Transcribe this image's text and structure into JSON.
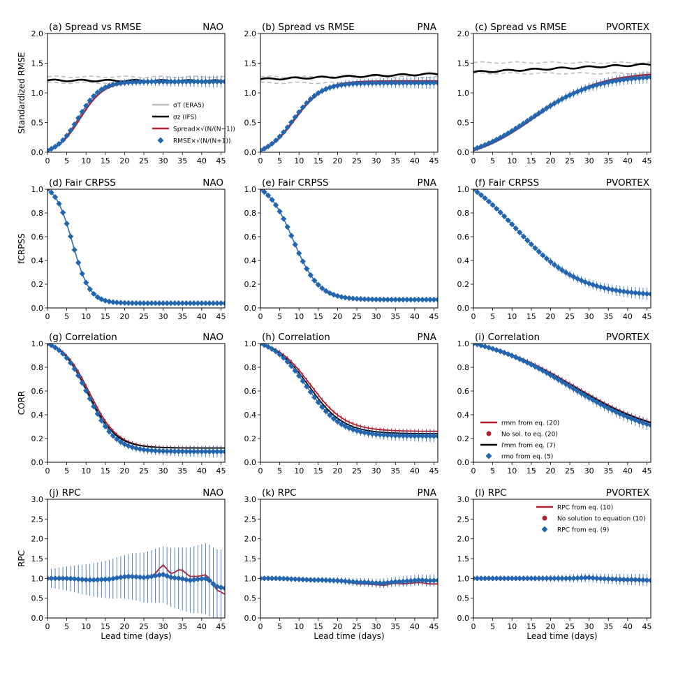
{
  "figure": {
    "xlabel": "Lead time (days)",
    "ylabels": [
      "Standardized RMSE",
      "fCRPSS",
      "CORR",
      "RPC"
    ],
    "regions": [
      "NAO",
      "PNA",
      "PVORTEX"
    ],
    "xticks": [
      "0",
      "5",
      "10",
      "15",
      "20",
      "25",
      "30",
      "35",
      "40",
      "45"
    ],
    "colors": {
      "red": "#b41f2d",
      "blue": "#2266b0",
      "black": "#000000",
      "gray": "#bdbdbd"
    }
  },
  "chart_data": [
    {
      "type": "line",
      "id": "a",
      "title": "(a) Spread vs RMSE",
      "region": "NAO",
      "ylim": [
        0,
        2.0
      ],
      "yticks": [
        "0.0",
        "0.5",
        "1.0",
        "1.5",
        "2.0"
      ],
      "xlim": [
        0,
        46
      ],
      "series": [
        {
          "name": "σ_T (ERA5)",
          "kind": "band",
          "color": "gray",
          "mean": 1.22,
          "halfwidth": 0.05
        },
        {
          "name": "σ_z (IFS)",
          "kind": "flat",
          "color": "black",
          "start": 1.21,
          "end": 1.2
        },
        {
          "name": "Spread×√(N/(N−1))",
          "kind": "sigmoid",
          "color": "red",
          "start": 0.03,
          "end": 1.19,
          "t0": 8.5,
          "k": 0.33
        },
        {
          "name": "RMSE×√(N/(N+1))",
          "kind": "sigmoid",
          "color": "blue",
          "marker": "diamond",
          "start": 0.03,
          "end": 1.19,
          "t0": 8.0,
          "k": 0.35
        }
      ],
      "legend": {
        "position": "center-right",
        "entries": [
          {
            "symbol": "line-gray",
            "label": "σT (ERA5)"
          },
          {
            "symbol": "line-black",
            "label": "σz (IFS)"
          },
          {
            "symbol": "line-red",
            "label": "Spread×√(N/(N−1))"
          },
          {
            "symbol": "diamond-blue",
            "label": "RMSE×√(N/(N+1))"
          }
        ]
      }
    },
    {
      "type": "line",
      "id": "b",
      "title": "(b) Spread vs RMSE",
      "region": "PNA",
      "ylim": [
        0,
        2.0
      ],
      "yticks": [
        "0.0",
        "0.5",
        "1.0",
        "1.5",
        "2.0"
      ],
      "xlim": [
        0,
        46
      ],
      "series": [
        {
          "name": "σ_T (ERA5)",
          "kind": "band",
          "color": "gray",
          "mean": 1.22,
          "halfwidth": 0.05
        },
        {
          "name": "σ_z (IFS)",
          "kind": "flat",
          "color": "black",
          "start": 1.23,
          "end": 1.32
        },
        {
          "name": "Spread",
          "kind": "sigmoid",
          "color": "red",
          "start": 0.03,
          "end": 1.2,
          "t0": 9.0,
          "k": 0.27
        },
        {
          "name": "RMSE",
          "kind": "sigmoid",
          "color": "blue",
          "marker": "diamond",
          "start": 0.03,
          "end": 1.17,
          "t0": 8.5,
          "k": 0.28
        }
      ]
    },
    {
      "type": "line",
      "id": "c",
      "title": "(c) Spread vs RMSE",
      "region": "PVORTEX",
      "ylim": [
        0,
        2.0
      ],
      "yticks": [
        "0.0",
        "0.5",
        "1.0",
        "1.5",
        "2.0"
      ],
      "xlim": [
        0,
        46
      ],
      "series": [
        {
          "name": "σ_T (ERA5)",
          "kind": "band",
          "color": "gray",
          "mean": 1.42,
          "halfwidth": 0.09
        },
        {
          "name": "σ_z (IFS)",
          "kind": "flat",
          "color": "black",
          "start": 1.35,
          "end": 1.48
        },
        {
          "name": "Spread",
          "kind": "sigmoid",
          "color": "red",
          "start": 0.03,
          "end": 1.35,
          "t0": 16.0,
          "k": 0.12
        },
        {
          "name": "RMSE",
          "kind": "sigmoid",
          "color": "blue",
          "marker": "diamond",
          "start": 0.05,
          "end": 1.3,
          "t0": 15.0,
          "k": 0.12
        }
      ]
    },
    {
      "type": "scatter",
      "id": "d",
      "title": "(d) Fair CRPSS",
      "region": "NAO",
      "ylim": [
        0,
        1.0
      ],
      "yticks": [
        "0.0",
        "0.2",
        "0.4",
        "0.6",
        "0.8",
        "1.0"
      ],
      "xlim": [
        0,
        46
      ],
      "series": [
        {
          "name": "fCRPSS",
          "kind": "sigmoid",
          "color": "blue",
          "marker": "diamond",
          "start": 1.0,
          "end": 0.04,
          "t0": 6.5,
          "k": 0.45
        }
      ]
    },
    {
      "type": "scatter",
      "id": "e",
      "title": "(e) Fair CRPSS",
      "region": "PNA",
      "ylim": [
        0,
        1.0
      ],
      "yticks": [
        "0.0",
        "0.2",
        "0.4",
        "0.6",
        "0.8",
        "1.0"
      ],
      "xlim": [
        0,
        46
      ],
      "series": [
        {
          "name": "fCRPSS",
          "kind": "sigmoid",
          "color": "blue",
          "marker": "diamond",
          "start": 1.0,
          "end": 0.07,
          "t0": 8.5,
          "k": 0.3
        }
      ]
    },
    {
      "type": "scatter",
      "id": "f",
      "title": "(f) Fair CRPSS",
      "region": "PVORTEX",
      "ylim": [
        0,
        1.0
      ],
      "yticks": [
        "0.0",
        "0.2",
        "0.4",
        "0.6",
        "0.8",
        "1.0"
      ],
      "xlim": [
        0,
        46
      ],
      "series": [
        {
          "name": "fCRPSS",
          "kind": "sigmoid",
          "color": "blue",
          "marker": "diamond",
          "start": 1.0,
          "end": 0.1,
          "t0": 11.0,
          "k": 0.12
        }
      ]
    },
    {
      "type": "line",
      "id": "g",
      "title": "(g) Correlation",
      "region": "NAO",
      "ylim": [
        0,
        1.0
      ],
      "yticks": [
        "0.0",
        "0.2",
        "0.4",
        "0.6",
        "0.8",
        "1.0"
      ],
      "xlim": [
        0,
        46
      ],
      "series": [
        {
          "name": "r_mm from eq. (20)",
          "kind": "sigmoid",
          "color": "red",
          "start": 1.0,
          "end": 0.12,
          "t0": 11.0,
          "k": 0.28
        },
        {
          "name": "r̄_mm from eq. (7)",
          "kind": "sigmoid",
          "color": "black",
          "start": 1.0,
          "end": 0.12,
          "t0": 10.5,
          "k": 0.28
        },
        {
          "name": "r_mo from eq. (5)",
          "kind": "sigmoid",
          "color": "blue",
          "marker": "diamond",
          "start": 1.0,
          "end": 0.09,
          "t0": 10.5,
          "k": 0.28
        }
      ]
    },
    {
      "type": "line",
      "id": "h",
      "title": "(h) Correlation",
      "region": "PNA",
      "ylim": [
        0,
        1.0
      ],
      "yticks": [
        "0.0",
        "0.2",
        "0.4",
        "0.6",
        "0.8",
        "1.0"
      ],
      "xlim": [
        0,
        46
      ],
      "series": [
        {
          "name": "r_mm from eq. (20)",
          "kind": "sigmoid",
          "color": "red",
          "start": 1.0,
          "end": 0.26,
          "t0": 13.0,
          "k": 0.22
        },
        {
          "name": "r̄_mm from eq. (7)",
          "kind": "sigmoid",
          "color": "black",
          "start": 1.0,
          "end": 0.24,
          "t0": 12.5,
          "k": 0.22
        },
        {
          "name": "r_mo from eq. (5)",
          "kind": "sigmoid",
          "color": "blue",
          "marker": "diamond",
          "start": 1.0,
          "end": 0.22,
          "t0": 12.0,
          "k": 0.22
        }
      ]
    },
    {
      "type": "line",
      "id": "i",
      "title": "(i) Correlation",
      "region": "PVORTEX",
      "ylim": [
        0,
        1.0
      ],
      "yticks": [
        "0.0",
        "0.2",
        "0.4",
        "0.6",
        "0.8",
        "1.0"
      ],
      "xlim": [
        0,
        46
      ],
      "series": [
        {
          "name": "r_mm from eq. (20)",
          "kind": "sigmoid",
          "color": "red",
          "start": 1.0,
          "end": 0.2,
          "t0": 26.0,
          "k": 0.085
        },
        {
          "name": "r̄_mm from eq. (7)",
          "kind": "sigmoid",
          "color": "black",
          "start": 1.0,
          "end": 0.2,
          "t0": 25.5,
          "k": 0.085
        },
        {
          "name": "r_mo from eq. (5)",
          "kind": "sigmoid",
          "color": "blue",
          "marker": "diamond",
          "start": 1.0,
          "end": 0.18,
          "t0": 25.0,
          "k": 0.085
        }
      ],
      "legend": {
        "position": "lower-right",
        "entries": [
          {
            "symbol": "line-red",
            "label": "rmm from eq. (20)"
          },
          {
            "symbol": "dot-red",
            "label": "No sol. to eq. (20)"
          },
          {
            "symbol": "line-black",
            "label": "r̄mm from eq. (7)"
          },
          {
            "symbol": "diamond-blue",
            "label": "rmo from eq. (5)"
          }
        ]
      }
    },
    {
      "type": "line",
      "id": "j",
      "title": "(j) RPC",
      "region": "NAO",
      "ylim": [
        0,
        3.0
      ],
      "yticks": [
        "0.0",
        "0.5",
        "1.0",
        "1.5",
        "2.0",
        "2.5",
        "3.0"
      ],
      "xlim": [
        0,
        46
      ],
      "series": [
        {
          "name": "RPC from eq. (10)",
          "kind": "wobble",
          "color": "red",
          "values": [
            1.0,
            1.0,
            1.0,
            0.99,
            0.97,
            0.96,
            0.96,
            0.97,
            1.03,
            1.07,
            1.05,
            1.02,
            1.08,
            1.35,
            1.1,
            1.25,
            1.05,
            1.05,
            1.1,
            0.72,
            0.6
          ]
        },
        {
          "name": "RPC from eq. (9)",
          "kind": "wobble",
          "color": "blue",
          "marker": "diamond",
          "values": [
            1.0,
            1.0,
            1.0,
            0.99,
            0.97,
            0.96,
            0.97,
            0.98,
            1.02,
            1.05,
            1.04,
            1.02,
            1.06,
            1.1,
            1.02,
            1.0,
            0.95,
            0.98,
            1.0,
            0.8,
            0.75
          ]
        }
      ]
    },
    {
      "type": "line",
      "id": "k",
      "title": "(k) RPC",
      "region": "PNA",
      "ylim": [
        0,
        3.0
      ],
      "yticks": [
        "0.0",
        "0.5",
        "1.0",
        "1.5",
        "2.0",
        "2.5",
        "3.0"
      ],
      "xlim": [
        0,
        46
      ],
      "series": [
        {
          "name": "RPC from eq. (10)",
          "kind": "wobble",
          "color": "red",
          "values": [
            1.0,
            1.0,
            1.0,
            0.98,
            0.97,
            0.96,
            0.95,
            0.95,
            0.94,
            0.93,
            0.9,
            0.86,
            0.86,
            0.84,
            0.82,
            0.88,
            0.86,
            0.88,
            0.9,
            0.86,
            0.86
          ]
        },
        {
          "name": "RPC from eq. (9)",
          "kind": "wobble",
          "color": "blue",
          "marker": "diamond",
          "values": [
            1.0,
            1.0,
            1.0,
            0.99,
            0.98,
            0.97,
            0.96,
            0.96,
            0.95,
            0.94,
            0.92,
            0.9,
            0.9,
            0.88,
            0.88,
            0.91,
            0.92,
            0.94,
            0.96,
            0.94,
            0.95
          ]
        }
      ]
    },
    {
      "type": "line",
      "id": "l",
      "title": "(l) RPC",
      "region": "PVORTEX",
      "ylim": [
        0,
        3.0
      ],
      "yticks": [
        "0.0",
        "0.5",
        "1.0",
        "1.5",
        "2.0",
        "2.5",
        "3.0"
      ],
      "xlim": [
        0,
        46
      ],
      "series": [
        {
          "name": "RPC from eq. (10)",
          "kind": "wobble",
          "color": "red",
          "values": [
            1.0,
            1.0,
            1.0,
            1.0,
            1.0,
            1.0,
            1.0,
            1.0,
            1.0,
            1.0,
            1.0,
            1.0,
            1.01,
            1.02,
            1.0,
            0.98,
            0.96,
            0.95,
            0.95,
            0.95,
            0.94
          ]
        },
        {
          "name": "RPC from eq. (9)",
          "kind": "wobble",
          "color": "blue",
          "marker": "diamond",
          "values": [
            1.0,
            1.0,
            1.0,
            1.0,
            1.0,
            1.0,
            1.0,
            1.0,
            1.0,
            1.0,
            1.0,
            1.0,
            1.01,
            1.02,
            1.0,
            0.99,
            0.98,
            0.97,
            0.97,
            0.96,
            0.95
          ]
        }
      ],
      "legend": {
        "position": "top-right",
        "entries": [
          {
            "symbol": "line-red",
            "label": "RPC from eq. (10)"
          },
          {
            "symbol": "dot-red",
            "label": "No solution to equation (10)"
          },
          {
            "symbol": "diamond-blue",
            "label": "RPC from eq. (9)"
          }
        ]
      }
    }
  ]
}
